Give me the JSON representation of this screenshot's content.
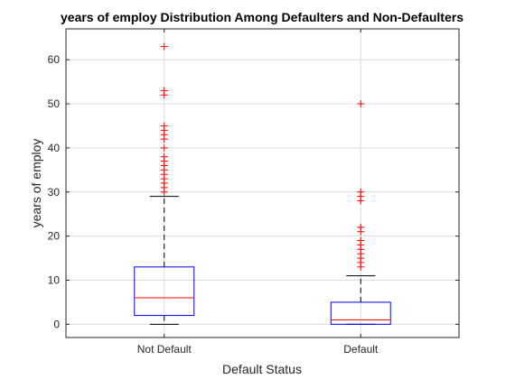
{
  "chart_data": {
    "type": "box",
    "title": "years of employ Distribution Among Defaulters and Non-Defaulters",
    "xlabel": "Default Status",
    "ylabel": "years of employ",
    "ylim": [
      -3,
      67
    ],
    "yticks": [
      0,
      10,
      20,
      30,
      40,
      50,
      60
    ],
    "grid": true,
    "categories": [
      "Not Default",
      "Default"
    ],
    "boxes": [
      {
        "category": "Not Default",
        "q1": 2,
        "median": 6,
        "q3": 13,
        "whisker_low": 0,
        "whisker_high": 29,
        "outliers": [
          30,
          31,
          32,
          33,
          34,
          35,
          36,
          37,
          38,
          40,
          42,
          43,
          44,
          45,
          52,
          53,
          63
        ]
      },
      {
        "category": "Default",
        "q1": 0,
        "median": 1,
        "q3": 5,
        "whisker_low": 0,
        "whisker_high": 11,
        "outliers": [
          13,
          14,
          15,
          16,
          17,
          18,
          19,
          21,
          22,
          28,
          29,
          30,
          50
        ]
      }
    ],
    "colors": {
      "box": "#0000ff",
      "median": "#ff0000",
      "whisker": "#000000",
      "outlier": "#ff0000"
    }
  }
}
